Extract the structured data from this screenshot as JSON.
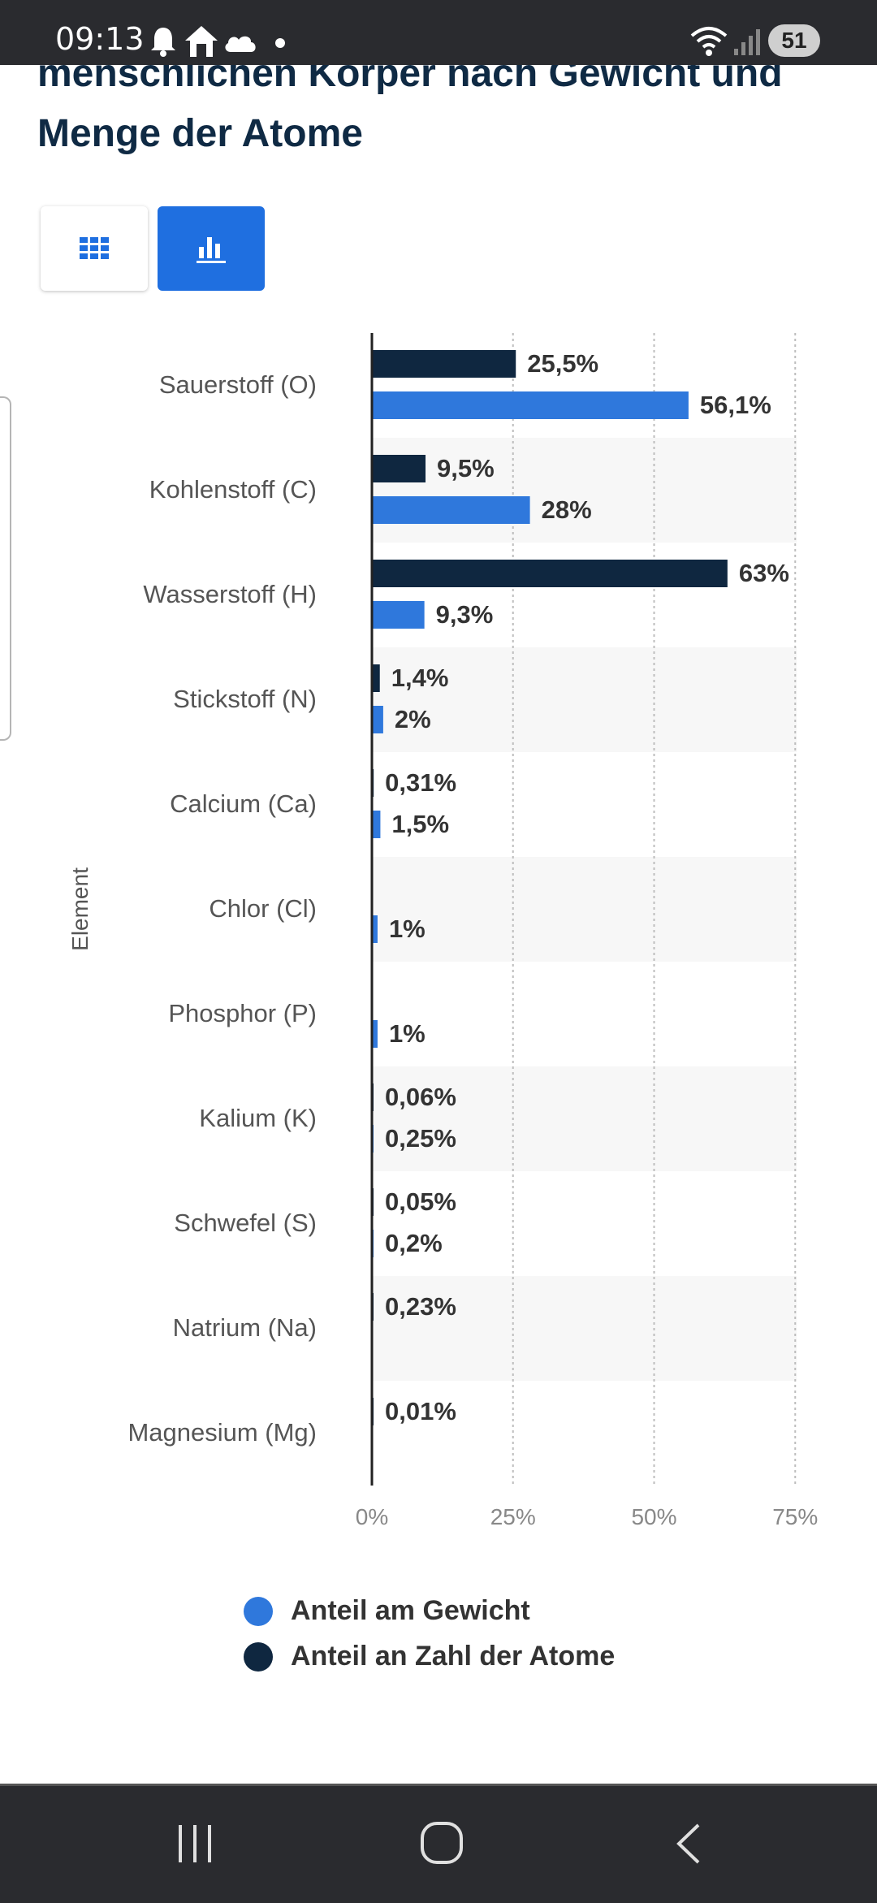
{
  "status_bar": {
    "time": "09:13",
    "battery": "51",
    "icons": [
      "bell-icon",
      "home-icon",
      "cloud-icon",
      "dot-icon",
      "wifi-icon",
      "signal-icon"
    ]
  },
  "title": {
    "line1": "menschlichen Körper nach Gewicht und",
    "line2": "Menge der Atome"
  },
  "view_toggle": {
    "table_icon": "grid-icon",
    "chart_icon": "bar-chart-icon",
    "active": "chart"
  },
  "colors": {
    "weight": "#2f78dc",
    "atoms": "#0f2740",
    "accent": "#1f6fe0"
  },
  "chart_data": {
    "type": "bar",
    "orientation": "horizontal",
    "ylabel": "Element",
    "xlim": [
      0,
      75
    ],
    "xticks": [
      0,
      25,
      50,
      75
    ],
    "xtick_labels": [
      "0%",
      "25%",
      "50%",
      "75%"
    ],
    "grid": true,
    "categories": [
      "Sauerstoff (O)",
      "Kohlenstoff (C)",
      "Wasserstoff (H)",
      "Stickstoff (N)",
      "Calcium (Ca)",
      "Chlor (Cl)",
      "Phosphor (P)",
      "Kalium (K)",
      "Schwefel (S)",
      "Natrium (Na)",
      "Magnesium (Mg)"
    ],
    "series": [
      {
        "name": "Anteil an Zahl der Atome",
        "values": [
          25.5,
          9.5,
          63,
          1.4,
          0.31,
          null,
          null,
          0.06,
          0.05,
          0.23,
          0.01
        ],
        "labels": [
          "25,5%",
          "9,5%",
          "63%",
          "1,4%",
          "0,31%",
          "",
          "",
          "0,06%",
          "0,05%",
          "0,23%",
          "0,01%"
        ]
      },
      {
        "name": "Anteil am Gewicht",
        "values": [
          56.1,
          28,
          9.3,
          2,
          1.5,
          1,
          1,
          0.25,
          0.2,
          null,
          null
        ],
        "labels": [
          "56,1%",
          "28%",
          "9,3%",
          "2%",
          "1,5%",
          "1%",
          "1%",
          "0,25%",
          "0,2%",
          "",
          ""
        ]
      }
    ],
    "legend": {
      "placement": "bottom",
      "entries": [
        "Anteil am Gewicht",
        "Anteil an Zahl der Atome"
      ]
    }
  }
}
